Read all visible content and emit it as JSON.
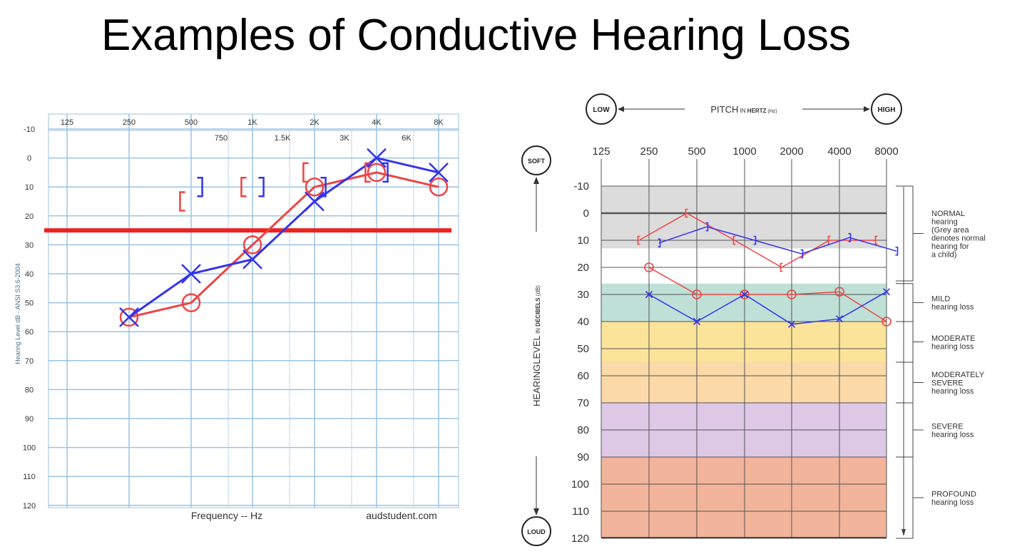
{
  "title": "Examples of Conductive Hearing Loss",
  "chart_data": [
    {
      "type": "line",
      "x_labels_top": [
        "125",
        "250",
        "500",
        "1K",
        "2K",
        "4K",
        "8K"
      ],
      "x_labels_mid": [
        "750",
        "1.5K",
        "3K",
        "6K"
      ],
      "y_ticks": [
        "-10",
        "0",
        "10",
        "20",
        "30",
        "40",
        "50",
        "60",
        "70",
        "80",
        "90",
        "100",
        "110",
        "120"
      ],
      "ylabel": "Hearing Level dB - ANSI S3.6-2004",
      "xlabel": "Frequency -- Hz",
      "credit": "audstudent.com",
      "ylim": [
        -10,
        120
      ],
      "reference_line": {
        "value": 25,
        "color": "#ee2222"
      },
      "series": [
        {
          "ear": "right-air",
          "color": "#ee4444",
          "marker": "O",
          "x": [
            250,
            500,
            1000,
            2000,
            4000,
            8000
          ],
          "values": [
            55,
            50,
            30,
            10,
            5,
            10
          ]
        },
        {
          "ear": "left-air",
          "color": "#3333ee",
          "marker": "X",
          "x": [
            250,
            500,
            1000,
            2000,
            4000,
            8000
          ],
          "values": [
            55,
            40,
            35,
            15,
            0,
            5
          ]
        },
        {
          "ear": "right-bone",
          "color": "#ee4444",
          "marker": "[",
          "x": [
            500,
            1000,
            2000,
            4000
          ],
          "values": [
            15,
            10,
            5,
            5
          ]
        },
        {
          "ear": "left-bone",
          "color": "#3333ee",
          "marker": "]",
          "x": [
            500,
            1000,
            2000,
            4000
          ],
          "values": [
            10,
            10,
            10,
            5
          ]
        }
      ]
    },
    {
      "type": "line",
      "pitch": {
        "low": "LOW",
        "label_a": "PITCH",
        "label_b": "IN",
        "label_c": "HERTZ",
        "label_d": "(Hz)",
        "high": "HIGH"
      },
      "x_labels": [
        "125",
        "250",
        "500",
        "1000",
        "2000",
        "4000",
        "8000"
      ],
      "y_ticks": [
        "-10",
        "0",
        "10",
        "20",
        "30",
        "40",
        "50",
        "60",
        "70",
        "80",
        "90",
        "100",
        "110",
        "120"
      ],
      "ylabel_parts": [
        "HEARINGLEVEL",
        "IN",
        "DECIBELS",
        "(dB)"
      ],
      "soft": "SOFT",
      "loud": "LOUD",
      "ylim": [
        -10,
        120
      ],
      "bands": [
        {
          "from": -10,
          "to": 13,
          "color": "#dcdcdc"
        },
        {
          "from": 26,
          "to": 40,
          "color": "#bfe0d6"
        },
        {
          "from": 40,
          "to": 55,
          "color": "#fbe39a"
        },
        {
          "from": 55,
          "to": 70,
          "color": "#fbd9a8"
        },
        {
          "from": 70,
          "to": 90,
          "color": "#ddc8e6"
        },
        {
          "from": 90,
          "to": 120,
          "color": "#f2b49a"
        }
      ],
      "categories": [
        {
          "lines": [
            "NORMAL",
            "hearing",
            "(Grey area",
            "denotes normal",
            "hearing for",
            "a child)"
          ],
          "from": -10,
          "to": 25
        },
        {
          "lines": [
            "MILD",
            "hearing loss"
          ],
          "from": 26,
          "to": 40
        },
        {
          "lines": [
            "MODERATE",
            "hearing loss"
          ],
          "from": 40,
          "to": 55
        },
        {
          "lines": [
            "MODERATELY",
            "SEVERE",
            "hearing loss"
          ],
          "from": 55,
          "to": 70
        },
        {
          "lines": [
            "SEVERE",
            "hearing loss"
          ],
          "from": 70,
          "to": 90
        },
        {
          "lines": [
            "PROFOUND",
            "hearing loss"
          ],
          "from": 90,
          "to": 120
        }
      ],
      "series": [
        {
          "ear": "right-bone",
          "color": "#ee4444",
          "marker": "[",
          "x": [
            250,
            500,
            1000,
            2000,
            4000,
            8000
          ],
          "values": [
            10,
            0,
            10,
            20,
            10,
            10
          ]
        },
        {
          "ear": "left-bone",
          "color": "#3333ee",
          "marker": "]",
          "x": [
            250,
            500,
            1000,
            2000,
            4000,
            8000
          ],
          "values": [
            11,
            5,
            10,
            15,
            9,
            14
          ]
        },
        {
          "ear": "right-air",
          "color": "#ee4444",
          "marker": "O",
          "x": [
            250,
            500,
            1000,
            2000,
            4000,
            8000
          ],
          "values": [
            20,
            30,
            30,
            30,
            29,
            40
          ]
        },
        {
          "ear": "left-air",
          "color": "#3333ee",
          "marker": "X",
          "x": [
            250,
            500,
            1000,
            2000,
            4000,
            8000
          ],
          "values": [
            30,
            40,
            30,
            41,
            39,
            29
          ]
        }
      ]
    }
  ]
}
